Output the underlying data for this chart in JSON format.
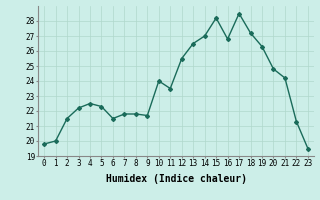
{
  "x": [
    0,
    1,
    2,
    3,
    4,
    5,
    6,
    7,
    8,
    9,
    10,
    11,
    12,
    13,
    14,
    15,
    16,
    17,
    18,
    19,
    20,
    21,
    22,
    23
  ],
  "y": [
    19.8,
    20.0,
    21.5,
    22.2,
    22.5,
    22.3,
    21.5,
    21.8,
    21.8,
    21.7,
    24.0,
    23.5,
    25.5,
    26.5,
    27.0,
    28.2,
    26.8,
    28.5,
    27.2,
    26.3,
    24.8,
    24.2,
    21.3,
    19.5
  ],
  "xlim": [
    -0.5,
    23.5
  ],
  "ylim": [
    19,
    29
  ],
  "yticks": [
    19,
    20,
    21,
    22,
    23,
    24,
    25,
    26,
    27,
    28
  ],
  "xticks": [
    0,
    1,
    2,
    3,
    4,
    5,
    6,
    7,
    8,
    9,
    10,
    11,
    12,
    13,
    14,
    15,
    16,
    17,
    18,
    19,
    20,
    21,
    22,
    23
  ],
  "xlabel": "Humidex (Indice chaleur)",
  "line_color": "#1a6b5a",
  "bg_color": "#cceee8",
  "grid_color": "#b0d8cc",
  "marker": "D",
  "marker_size": 2.0,
  "line_width": 1.0,
  "xlabel_fontsize": 7,
  "tick_fontsize": 5.5
}
